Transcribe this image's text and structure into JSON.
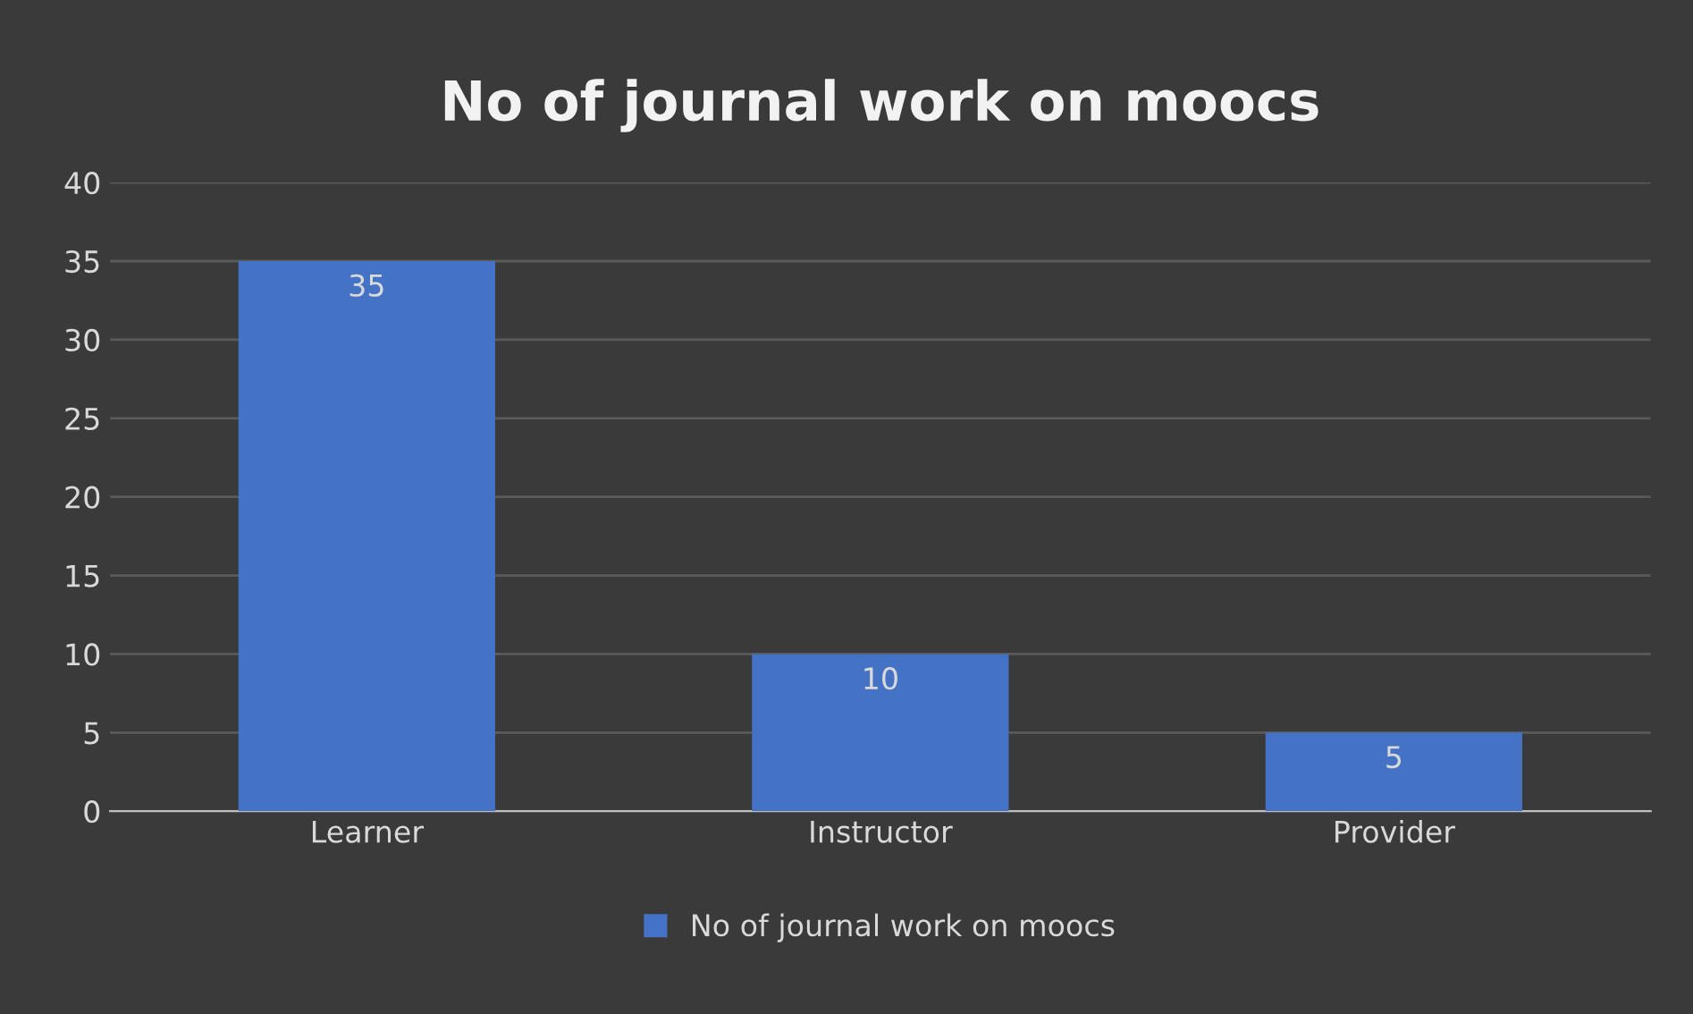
{
  "chart_data": {
    "type": "bar",
    "title": "No of journal work on moocs",
    "categories": [
      "Learner",
      "Instructor",
      "Provider"
    ],
    "series": [
      {
        "name": "No of journal work on moocs",
        "color": "#4472c4",
        "values": [
          35,
          10,
          5
        ]
      }
    ],
    "ylim": [
      0,
      40
    ],
    "yticks": [
      0,
      5,
      10,
      15,
      20,
      25,
      30,
      35,
      40
    ],
    "grid": "y",
    "legend": "bottom",
    "data_labels": true
  }
}
